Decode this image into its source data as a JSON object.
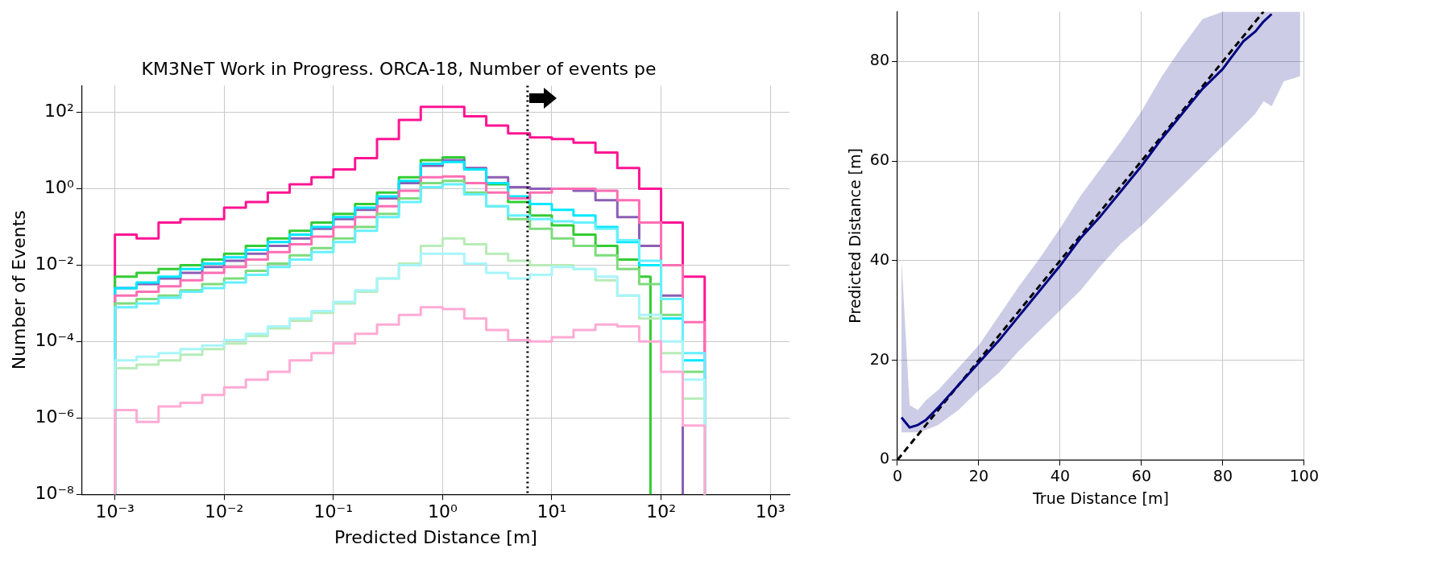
{
  "chart_data": [
    {
      "type": "histogram",
      "title": "KM3NeT Work in Progress. ORCA-18, Number of events pe",
      "xlabel": "Predicted Distance [m]",
      "ylabel": "Number of Events",
      "log": "xy",
      "grid": true,
      "xlim": [
        0.0005,
        1500
      ],
      "ylim": [
        1e-08,
        500
      ],
      "xticks": [
        {
          "value": 0.001,
          "label": "10⁻³"
        },
        {
          "value": 0.01,
          "label": "10⁻²"
        },
        {
          "value": 0.1,
          "label": "10⁻¹"
        },
        {
          "value": 1,
          "label": "10⁰"
        },
        {
          "value": 10,
          "label": "10¹"
        },
        {
          "value": 100,
          "label": "10²"
        },
        {
          "value": 1000,
          "label": "10³"
        }
      ],
      "yticks": [
        {
          "value": 1e-08,
          "label": "10⁻⁸"
        },
        {
          "value": 1e-06,
          "label": "10⁻⁶"
        },
        {
          "value": 0.0001,
          "label": "10⁻⁴"
        },
        {
          "value": 0.01,
          "label": "10⁻²"
        },
        {
          "value": 1,
          "label": "10⁰"
        },
        {
          "value": 100,
          "label": "10²"
        }
      ],
      "bins": [
        0.001,
        0.00158,
        0.00251,
        0.00398,
        0.00631,
        0.01,
        0.0158,
        0.0251,
        0.0398,
        0.0631,
        0.1,
        0.158,
        0.251,
        0.398,
        0.631,
        1,
        1.58,
        2.51,
        3.98,
        6.31,
        10,
        15.8,
        25.1,
        39.8,
        63.1,
        100,
        158,
        251
      ],
      "ref_lines": [
        {
          "axis": "x",
          "value": 6,
          "color": "#000000",
          "line_style": "dotted"
        }
      ],
      "series": [
        {
          "color": "#ffaad4",
          "values": [
            1.6e-06,
            7.9e-07,
            2e-06,
            2.5e-06,
            4e-06,
            6.3e-06,
            1e-05,
            1.6e-05,
            3.2e-05,
            5e-05,
            8.9e-05,
            0.00016,
            0.00028,
            0.0005,
            0.00079,
            0.00071,
            0.0004,
            0.0002,
            0.00011,
            0.0001,
            0.00013,
            0.0002,
            0.00028,
            0.00025,
            0.0001,
            1.6e-05,
            6.3e-07
          ]
        },
        {
          "color": "#a8f5fa",
          "values": [
            3.2e-05,
            4e-05,
            5e-05,
            6.3e-05,
            7.9e-05,
            0.00011,
            0.00016,
            0.00025,
            0.0004,
            0.00063,
            0.0011,
            0.0022,
            0.0045,
            0.01,
            0.02,
            0.02,
            0.011,
            0.0063,
            0.0045,
            0.0056,
            0.0089,
            0.0079,
            0.005,
            0.0016,
            0.0005,
            0.0001,
            1e-05
          ]
        },
        {
          "color": "#b8ecb8",
          "values": [
            2e-05,
            2.5e-05,
            3.2e-05,
            4.5e-05,
            6.3e-05,
            8.9e-05,
            0.00014,
            0.00022,
            0.00035,
            0.00056,
            0.001,
            0.002,
            0.0045,
            0.011,
            0.032,
            0.05,
            0.035,
            0.02,
            0.013,
            0.01,
            0.01,
            0.0079,
            0.004,
            0.0016,
            0.0004,
            5e-05,
            3.2e-06
          ]
        },
        {
          "color": "#66f0ff",
          "values": [
            0.00079,
            0.001,
            0.0014,
            0.002,
            0.0025,
            0.0035,
            0.0056,
            0.0089,
            0.014,
            0.022,
            0.04,
            0.079,
            0.18,
            0.45,
            1.1,
            1.3,
            0.71,
            0.35,
            0.2,
            0.16,
            0.14,
            0.13,
            0.089,
            0.045,
            0.013,
            0.0013,
            5e-05
          ]
        },
        {
          "color": "#7ddc7d",
          "values": [
            0.001,
            0.0013,
            0.0016,
            0.0022,
            0.0032,
            0.0045,
            0.0071,
            0.011,
            0.018,
            0.028,
            0.05,
            0.1,
            0.22,
            0.56,
            1.4,
            1.6,
            0.79,
            0.35,
            0.16,
            0.089,
            0.05,
            0.032,
            0.018,
            0.0079,
            0.0032,
            0.0005,
            1.6e-05
          ]
        },
        {
          "color": "#ff6eb4",
          "values": [
            0.0016,
            0.002,
            0.0028,
            0.004,
            0.0063,
            0.0089,
            0.014,
            0.022,
            0.035,
            0.056,
            0.1,
            0.18,
            0.35,
            0.89,
            2,
            2.1,
            1.4,
            0.79,
            0.56,
            0.79,
            1,
            1,
            0.89,
            0.5,
            0.13,
            0.01,
            0.00032
          ]
        },
        {
          "color": "#00e8ff",
          "values": [
            0.0025,
            0.0035,
            0.005,
            0.0079,
            0.011,
            0.016,
            0.025,
            0.04,
            0.063,
            0.1,
            0.18,
            0.32,
            0.63,
            1.6,
            4.5,
            5,
            3.2,
            1.4,
            0.63,
            0.4,
            0.28,
            0.2,
            0.1,
            0.04,
            0.01,
            0.0004,
            3.2e-05
          ]
        },
        {
          "color": "#8c5fb5",
          "bins": [
            0.001,
            0.00158,
            0.00251,
            0.00398,
            0.00631,
            0.01,
            0.0158,
            0.0251,
            0.0398,
            0.0631,
            0.1,
            0.158,
            0.251,
            0.398,
            0.631,
            1,
            1.58,
            2.51,
            3.98,
            6.31,
            10,
            15.8,
            25.1,
            39.8,
            63.1,
            100,
            158
          ],
          "values": [
            0.0025,
            0.0032,
            0.0045,
            0.0063,
            0.0089,
            0.013,
            0.02,
            0.032,
            0.05,
            0.089,
            0.16,
            0.28,
            0.56,
            1.4,
            4,
            5.6,
            3.5,
            2,
            1.1,
            1,
            1,
            0.89,
            0.5,
            0.18,
            0.032,
            0.0016
          ]
        },
        {
          "color": "#33cc33",
          "bins": [
            0.001,
            0.00158,
            0.00251,
            0.00398,
            0.00631,
            0.01,
            0.0158,
            0.0251,
            0.0398,
            0.0631,
            0.1,
            0.158,
            0.251,
            0.398,
            0.631,
            1,
            1.58,
            2.51,
            3.98,
            6.31,
            10,
            15.8,
            25.1,
            39.8,
            63.1,
            80
          ],
          "values": [
            0.005,
            0.0063,
            0.0079,
            0.01,
            0.014,
            0.02,
            0.032,
            0.05,
            0.079,
            0.13,
            0.22,
            0.4,
            0.79,
            2,
            5.6,
            6.6,
            3.2,
            1.3,
            0.45,
            0.2,
            0.11,
            0.063,
            0.032,
            0.014,
            0.005
          ]
        },
        {
          "color": "#ff1493",
          "values": [
            0.063,
            0.05,
            0.13,
            0.16,
            0.16,
            0.32,
            0.45,
            0.79,
            1.3,
            2,
            3.2,
            6.3,
            20,
            63,
            140,
            140,
            79,
            45,
            28,
            22,
            20,
            16,
            8.9,
            3.5,
            1,
            0.13,
            0.005
          ]
        }
      ]
    },
    {
      "type": "line",
      "xlabel": "True Distance [m]",
      "ylabel": "Predicted Distance [m]",
      "grid": true,
      "xlim": [
        0,
        100
      ],
      "ylim": [
        0,
        90
      ],
      "xticks": [
        0,
        20,
        40,
        60,
        80,
        100
      ],
      "yticks": [
        0,
        20,
        40,
        60,
        80
      ],
      "series": [
        {
          "color": "#000080",
          "x": [
            1,
            3,
            5,
            7,
            10,
            15,
            20,
            25,
            30,
            35,
            40,
            45,
            50,
            55,
            60,
            65,
            70,
            75,
            80,
            85,
            88,
            90,
            92,
            95,
            99
          ],
          "values": [
            8.5,
            6.5,
            7,
            8,
            10.5,
            15,
            19.5,
            24,
            29,
            34,
            39,
            44.5,
            49,
            54,
            59,
            64.5,
            69.5,
            74.5,
            78.5,
            84,
            86,
            88,
            89.5,
            null,
            null
          ],
          "lower": [
            5.5,
            5.5,
            5.5,
            6,
            7,
            10,
            14,
            17.5,
            22,
            26,
            30,
            34,
            39,
            43.5,
            47,
            51,
            55,
            59,
            63,
            67,
            69.5,
            72,
            71,
            76,
            77
          ],
          "upper": [
            40,
            11,
            10,
            12,
            14,
            18.5,
            23,
            29,
            35,
            40.5,
            46.5,
            53,
            58.5,
            64,
            70,
            77,
            83,
            88.5,
            90,
            90,
            90,
            90,
            90,
            90,
            90
          ]
        },
        {
          "type": "line",
          "color": "#000000",
          "line_style": "dashed",
          "x": [
            0,
            90
          ],
          "values": [
            0,
            90
          ]
        }
      ]
    }
  ]
}
